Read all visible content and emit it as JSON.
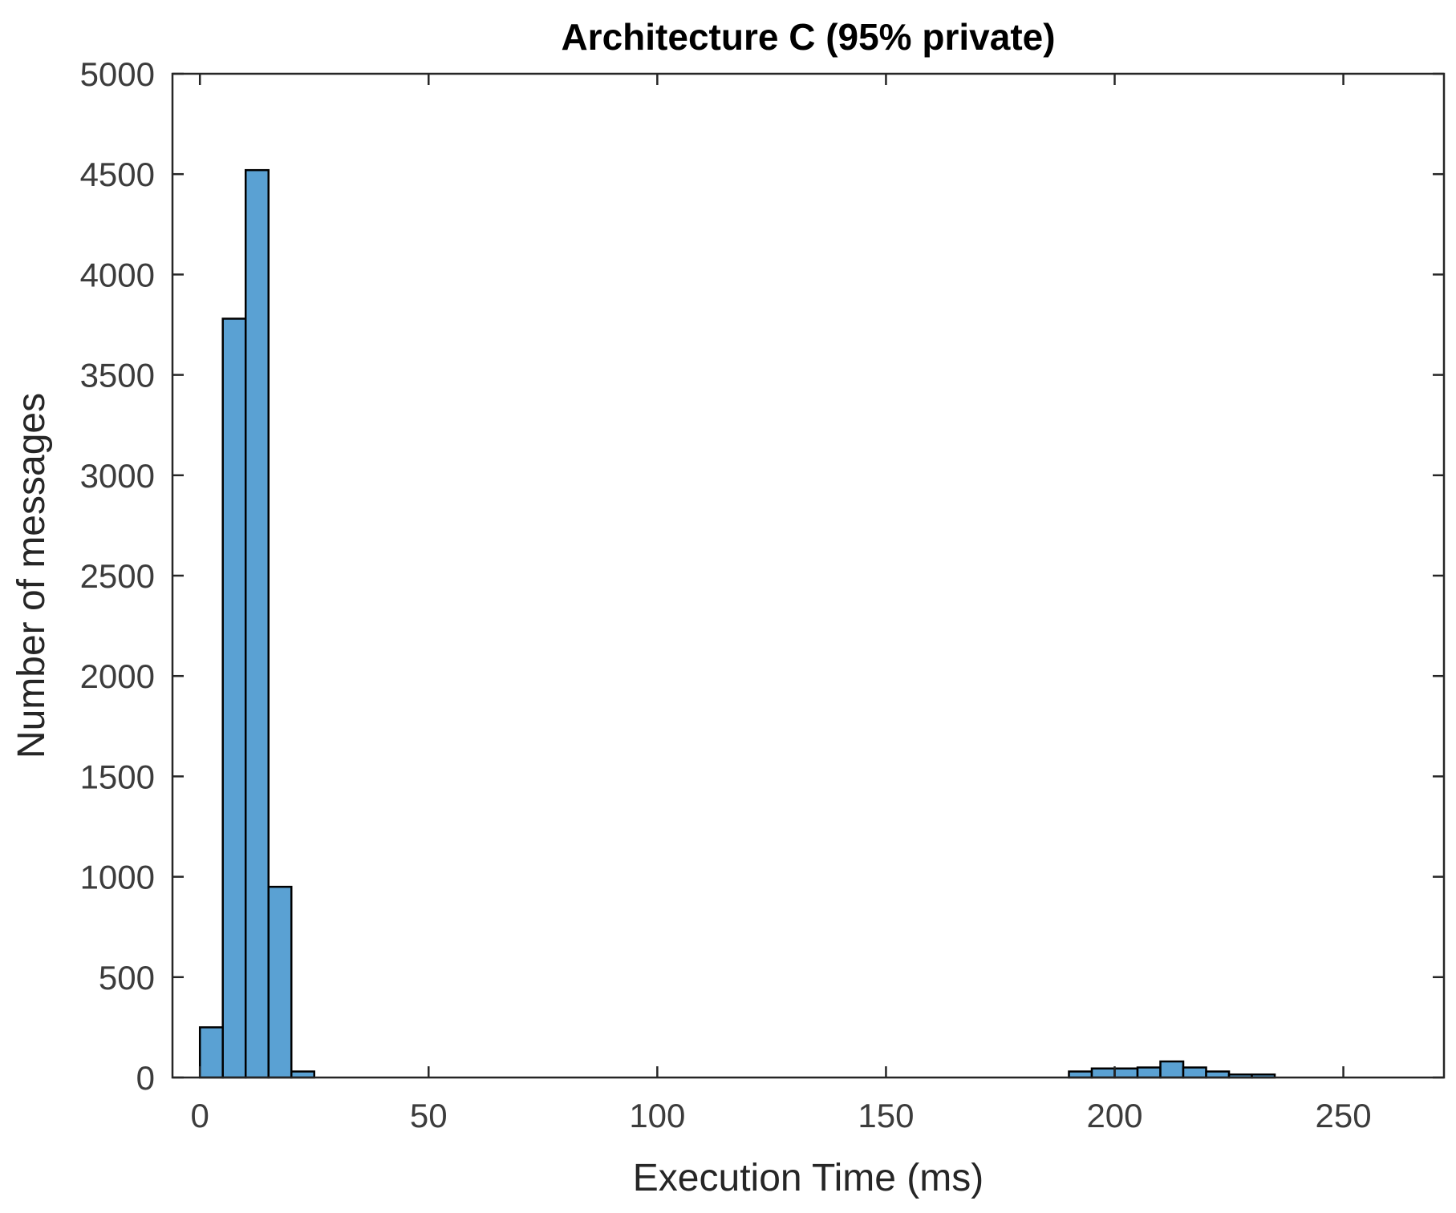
{
  "chart_data": {
    "type": "bar",
    "title": "Architecture C (95% private)",
    "xlabel": "Execution Time (ms)",
    "ylabel": "Number of messages",
    "xlim": [
      -6,
      272
    ],
    "ylim": [
      0,
      5000
    ],
    "xticks": [
      0,
      50,
      100,
      150,
      200,
      250
    ],
    "yticks": [
      0,
      500,
      1000,
      1500,
      2000,
      2500,
      3000,
      3500,
      4000,
      4500,
      5000
    ],
    "bin_width": 5,
    "grid": false,
    "bar_color": "#5aa1d3",
    "edge_color": "#000000",
    "bins": [
      {
        "x0": 0,
        "x1": 5,
        "count": 250
      },
      {
        "x0": 5,
        "x1": 10,
        "count": 3780
      },
      {
        "x0": 10,
        "x1": 15,
        "count": 4520
      },
      {
        "x0": 15,
        "x1": 20,
        "count": 950
      },
      {
        "x0": 20,
        "x1": 25,
        "count": 30
      },
      {
        "x0": 190,
        "x1": 195,
        "count": 30
      },
      {
        "x0": 195,
        "x1": 200,
        "count": 45
      },
      {
        "x0": 200,
        "x1": 205,
        "count": 45
      },
      {
        "x0": 205,
        "x1": 210,
        "count": 50
      },
      {
        "x0": 210,
        "x1": 215,
        "count": 80
      },
      {
        "x0": 215,
        "x1": 220,
        "count": 50
      },
      {
        "x0": 220,
        "x1": 225,
        "count": 30
      },
      {
        "x0": 225,
        "x1": 230,
        "count": 15
      },
      {
        "x0": 230,
        "x1": 235,
        "count": 15
      }
    ]
  }
}
